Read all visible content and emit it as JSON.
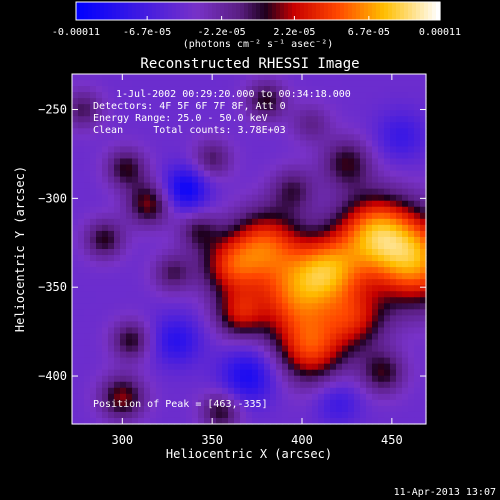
{
  "chart_data": {
    "type": "heatmap",
    "title": "Reconstructed RHESSI Image",
    "xlabel": "Heliocentric X (arcsec)",
    "ylabel": "Heliocentric Y (arcsec)",
    "xlim": [
      272,
      469
    ],
    "ylim": [
      -427,
      -230
    ],
    "x_ticks": [
      300,
      350,
      400,
      450
    ],
    "y_ticks": [
      -250,
      -300,
      -350,
      -400
    ],
    "colorbar": {
      "min": -0.00011,
      "max": 0.00011,
      "tick_labels": [
        "-0.00011",
        "-6.7e-05",
        "-2.2e-05",
        "2.2e-05",
        "6.7e-05",
        "0.00011"
      ],
      "tick_values": [
        -0.00011,
        -6.7e-05,
        -2.2e-05,
        2.2e-05,
        6.7e-05,
        0.00011
      ],
      "units": "(photons cm⁻² s⁻¹ asec⁻²)"
    },
    "annotations": [
      "1-Jul-2002 00:29:20.000 to 00:34:18.000",
      "Detectors: 4F 5F 6F 7F 8F, Att 0",
      "Energy Range: 25.0 - 50.0 keV",
      "Clean     Total counts: 3.78E+03",
      "Position of Peak = [463,-335]"
    ],
    "peak": {
      "x": 463,
      "y": -335
    },
    "sources": [
      {
        "x": 463,
        "y": -335,
        "sigma": 18,
        "amp": 0.00011
      },
      {
        "x": 440,
        "y": -318,
        "sigma": 15,
        "amp": 9e-05
      },
      {
        "x": 415,
        "y": -340,
        "sigma": 14,
        "amp": 9e-05
      },
      {
        "x": 395,
        "y": -355,
        "sigma": 16,
        "amp": 8e-05
      },
      {
        "x": 405,
        "y": -385,
        "sigma": 14,
        "amp": 8e-05
      },
      {
        "x": 380,
        "y": -325,
        "sigma": 14,
        "amp": 8e-05
      },
      {
        "x": 360,
        "y": -338,
        "sigma": 12,
        "amp": 7e-05
      },
      {
        "x": 365,
        "y": -365,
        "sigma": 10,
        "amp": 6e-05
      },
      {
        "x": 430,
        "y": -368,
        "sigma": 12,
        "amp": 6e-05
      },
      {
        "x": 445,
        "y": -398,
        "sigma": 9,
        "amp": 5e-05
      },
      {
        "x": 315,
        "y": -303,
        "sigma": 9,
        "amp": 6e-05
      },
      {
        "x": 302,
        "y": -283,
        "sigma": 8,
        "amp": 5e-05
      },
      {
        "x": 290,
        "y": -323,
        "sigma": 8,
        "amp": 5e-05
      },
      {
        "x": 328,
        "y": -342,
        "sigma": 8,
        "amp": 4e-05
      },
      {
        "x": 342,
        "y": -318,
        "sigma": 8,
        "amp": 4e-05
      },
      {
        "x": 305,
        "y": -380,
        "sigma": 8,
        "amp": 5e-05
      },
      {
        "x": 300,
        "y": -412,
        "sigma": 9,
        "amp": 6e-05
      },
      {
        "x": 355,
        "y": -420,
        "sigma": 8,
        "amp": 5e-05
      },
      {
        "x": 425,
        "y": -280,
        "sigma": 10,
        "amp": 5e-05
      },
      {
        "x": 395,
        "y": -295,
        "sigma": 9,
        "amp": 4e-05
      },
      {
        "x": 405,
        "y": -258,
        "sigma": 8,
        "amp": 3e-05
      },
      {
        "x": 380,
        "y": -245,
        "sigma": 8,
        "amp": 5e-05
      },
      {
        "x": 350,
        "y": -278,
        "sigma": 8,
        "amp": 4e-05
      },
      {
        "x": 278,
        "y": -250,
        "sigma": 8,
        "amp": 4e-05
      },
      {
        "x": 335,
        "y": -295,
        "sigma": 9,
        "amp": -6e-05
      },
      {
        "x": 370,
        "y": -400,
        "sigma": 11,
        "amp": -5e-05
      },
      {
        "x": 330,
        "y": -380,
        "sigma": 10,
        "amp": -4e-05
      },
      {
        "x": 455,
        "y": -265,
        "sigma": 10,
        "amp": -3e-05
      },
      {
        "x": 420,
        "y": -415,
        "sigma": 9,
        "amp": -3e-05
      }
    ],
    "background": -4.5e-05
  },
  "footer": {
    "timestamp": "11-Apr-2013 13:07"
  }
}
